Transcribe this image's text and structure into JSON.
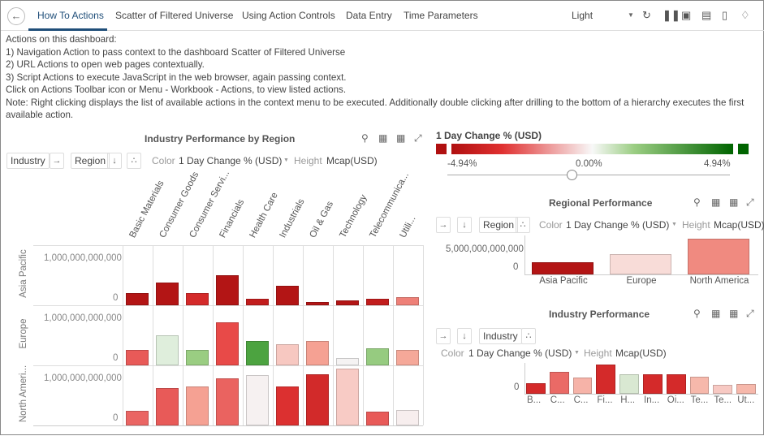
{
  "nav": {
    "back_icon": "arrow-left-icon",
    "tabs": [
      "How To Actions",
      "Scatter of Filtered Universe",
      "Using Action Controls",
      "Data Entry",
      "Time Parameters"
    ],
    "active_tab": 0,
    "theme": "Light",
    "icons": [
      "refresh-icon",
      "pause-icon",
      "snapshot-icon",
      "pdf-icon",
      "bookmark-icon",
      "bell-icon"
    ]
  },
  "description": [
    "Actions on this dashboard:",
    "1) Navigation Action to pass context to the dashboard Scatter of Filtered Universe",
    "2) URL Actions to open web pages contextually.",
    "3) Script Actions to execute JavaScript in the web browser, again passing context.",
    "Click on Actions Toolbar icon or Menu - Workbook - Actions, to view listed actions.",
    "Note: Right clicking displays the list of available actions in the context menu to be executed.   Additionally double clicking after drilling to the bottom of a hierarchy executes the first available action."
  ],
  "common": {
    "color_label": "Color",
    "color_value": "1 Day Change % (USD)",
    "height_label": "Height",
    "height_value": "Mcap(USD)",
    "tools": [
      "search-icon",
      "excel-export-icon",
      "table-icon",
      "expand-icon"
    ]
  },
  "legend": {
    "title": "1 Day Change % (USD)",
    "min": "-4.94%",
    "mid": "0.00%",
    "max": "4.94%",
    "colors": {
      "low": "#b01010",
      "mid": "#f8f8f8",
      "high": "#006400"
    },
    "slider_value": 0.0
  },
  "chart_data": [
    {
      "type": "bar",
      "title": "Industry Performance by Region",
      "x_field": "Industry",
      "y_field": "Region",
      "categories": [
        "Basic Materials",
        "Consumer Goods",
        "Consumer Servi...",
        "Financials",
        "Health Care",
        "Industrials",
        "Oil & Gas",
        "Technology",
        "Telecommunica...",
        "Utili..."
      ],
      "yticks": [
        "1,000,000,000,000",
        "0"
      ],
      "ylim": [
        0,
        1250000000000
      ],
      "series": [
        {
          "name": "Asia Pacific",
          "values": [
            260000000000.0,
            480000000000.0,
            260000000000.0,
            640000000000.0,
            140000000000.0,
            410000000000.0,
            70000000000.0,
            100000000000.0,
            140000000000.0,
            170000000000.0
          ],
          "colors": [
            "#b31515",
            "#b31515",
            "#d42a2a",
            "#b31515",
            "#c21d1d",
            "#b31515",
            "#b31515",
            "#b31515",
            "#c21d1d",
            "#ee8078"
          ]
        },
        {
          "name": "Europe",
          "values": [
            330000000000.0,
            630000000000.0,
            330000000000.0,
            910000000000.0,
            520000000000.0,
            450000000000.0,
            520000000000.0,
            160000000000.0,
            360000000000.0,
            330000000000.0
          ],
          "colors": [
            "#e85a58",
            "#dfeedc",
            "#9acd82",
            "#e84a48",
            "#4ca340",
            "#f7c8c1",
            "#f5a193",
            "#f5f3f3",
            "#96cb80",
            "#f5a899"
          ]
        },
        {
          "name": "North Ameri...",
          "values": [
            310000000000.0,
            790000000000.0,
            830000000000.0,
            1000000000000.0,
            1070000000000.0,
            830000000000.0,
            1090000000000.0,
            1210000000000.0,
            300000000000.0,
            330000000000.0
          ],
          "colors": [
            "#ea6563",
            "#e85a58",
            "#f5a193",
            "#ea6360",
            "#f6f1f1",
            "#dc3030",
            "#d22a2a",
            "#f8cbc5",
            "#e85a58",
            "#f7eeee"
          ]
        }
      ]
    },
    {
      "type": "bar",
      "title": "Regional Performance",
      "x_field": "Region",
      "categories": [
        "Asia Pacific",
        "Europe",
        "North America"
      ],
      "values": [
        2500000000000.0,
        4200000000000.0,
        7300000000000.0
      ],
      "colors": [
        "#b31515",
        "#f8dcd8",
        "#f08a80"
      ],
      "yticks": [
        "5,000,000,000,000",
        "0"
      ],
      "ylim": [
        0,
        8000000000000
      ]
    },
    {
      "type": "bar",
      "title": "Industry Performance",
      "x_field": "Industry",
      "categories": [
        "B...",
        "C...",
        "C...",
        "Fi...",
        "H...",
        "In...",
        "Oi...",
        "Te...",
        "Te...",
        "Ut..."
      ],
      "values": [
        900000000000.0,
        1900000000000.0,
        1400000000000.0,
        2550000000000.0,
        1700000000000.0,
        1700000000000.0,
        1700000000000.0,
        1500000000000.0,
        800000000000.0,
        830000000000.0
      ],
      "colors": [
        "#d42a2a",
        "#ea6a66",
        "#f6b3a8",
        "#d42a2a",
        "#d9e8d2",
        "#d42a2a",
        "#d42a2a",
        "#f6b8ab",
        "#f7c9c3",
        "#f6b8ab"
      ],
      "yticks": [
        "0"
      ],
      "ylim": [
        0,
        2800000000000
      ]
    }
  ]
}
